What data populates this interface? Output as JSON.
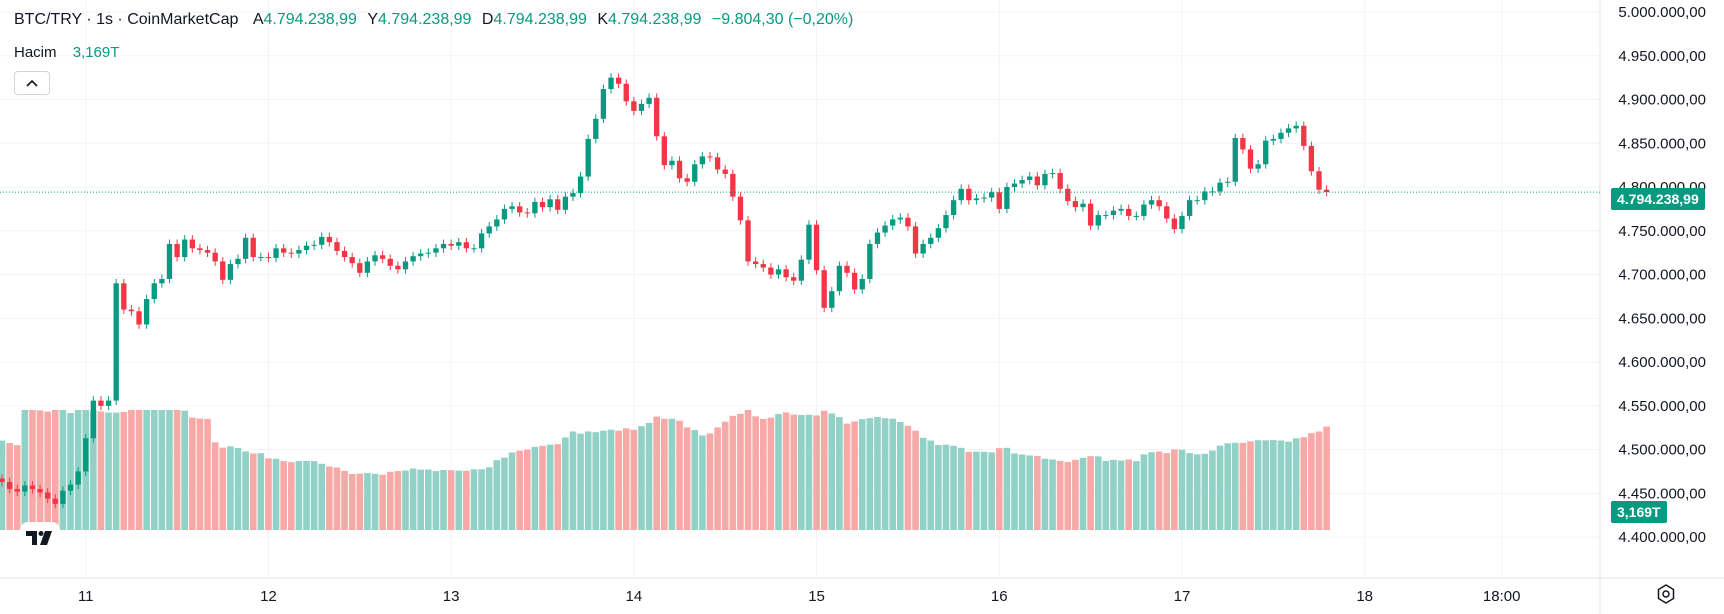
{
  "legend": {
    "symbol": "BTC/TRY · 1s · CoinMarketCap",
    "open_label": "A",
    "open": "4.794.238,99",
    "high_label": "Y",
    "high": "4.794.238,99",
    "low_label": "D",
    "low": "4.794.238,99",
    "close_label": "K",
    "close": "4.794.238,99",
    "change": "−9.804,30 (−0,20%)"
  },
  "volume_legend": {
    "label": "Hacim",
    "value": "3,169T"
  },
  "last_price_tag": "4.794.238,99",
  "volume_tag": "3,169T",
  "colors": {
    "up": "#089981",
    "down": "#f23645",
    "vol_up": "#92d2c6",
    "vol_down": "#f7a9a7",
    "grid": "#f0f3fa"
  },
  "chart_data": {
    "type": "candlestick",
    "y_axis": {
      "range": [
        4375000,
        5000000
      ],
      "ticks": [
        "5.000.000,00",
        "4.950.000,00",
        "4.900.000,00",
        "4.850.000,00",
        "4.800.000,00",
        "4.750.000,00",
        "4.700.000,00",
        "4.650.000,00",
        "4.600.000,00",
        "4.550.000,00",
        "4.500.000,00",
        "4.450.000,00",
        "4.400.000,00"
      ],
      "tick_values": [
        5000000,
        4950000,
        4900000,
        4850000,
        4800000,
        4750000,
        4700000,
        4650000,
        4600000,
        4550000,
        4500000,
        4450000,
        4400000
      ]
    },
    "x_axis": {
      "labels": [
        "11",
        "12",
        "13",
        "14",
        "15",
        "16",
        "17",
        "18",
        "18:00"
      ],
      "label_hours": [
        11,
        35,
        59,
        83,
        107,
        131,
        155,
        179,
        197
      ],
      "start_hour": 0,
      "end_hour": 204
    },
    "last_price": 4794238.99,
    "candle_closes": [
      4463000,
      4455000,
      4452000,
      4459000,
      4455000,
      4451000,
      4444000,
      4438000,
      4453000,
      4460000,
      4475000,
      4513000,
      4556000,
      4550000,
      4556000,
      4690000,
      4660000,
      4658000,
      4643000,
      4672000,
      4690000,
      4695000,
      4735000,
      4720000,
      4740000,
      4730000,
      4728000,
      4725000,
      4715000,
      4694000,
      4712000,
      4718000,
      4742000,
      4720000,
      4720000,
      4719000,
      4730000,
      4725000,
      4724000,
      4728000,
      4733000,
      4734000,
      4743000,
      4737000,
      4727000,
      4720000,
      4713000,
      4702000,
      4715000,
      4722000,
      4718000,
      4710000,
      4706000,
      4715000,
      4721000,
      4724000,
      4725000,
      4730000,
      4735000,
      4733000,
      4737000,
      4730000,
      4730000,
      4747000,
      4755000,
      4763000,
      4775000,
      4778000,
      4771000,
      4770000,
      4783000,
      4777000,
      4786000,
      4774000,
      4789000,
      4793000,
      4812000,
      4855000,
      4878000,
      4912000,
      4925000,
      4918000,
      4898000,
      4887000,
      4895000,
      4902000,
      4858000,
      4825000,
      4830000,
      4810000,
      4806000,
      4826000,
      4835000,
      4834000,
      4820000,
      4815000,
      4789000,
      4762000,
      4715000,
      4712000,
      4708000,
      4700000,
      4706000,
      4697000,
      4693000,
      4717000,
      4757000,
      4705000,
      4662000,
      4681000,
      4710000,
      4702000,
      4683000,
      4695000,
      4735000,
      4748000,
      4756000,
      4763000,
      4765000,
      4755000,
      4724000,
      4735000,
      4742000,
      4753000,
      4768000,
      4785000,
      4798000,
      4785000,
      4787000,
      4788000,
      4794000,
      4775000,
      4800000,
      4804000,
      4808000,
      4812000,
      4802000,
      4815000,
      4816000,
      4798000,
      4784000,
      4777000,
      4781000,
      4756000,
      4768000,
      4768000,
      4773000,
      4775000,
      4767000,
      4767000,
      4780000,
      4785000,
      4778000,
      4764000,
      4752000,
      4767000,
      4785000,
      4785000,
      4795000,
      4795000,
      4805000,
      4806000,
      4856000,
      4843000,
      4821000,
      4826000,
      4853000,
      4855000,
      4862000,
      4867000,
      4870000,
      4847000,
      4818000,
      4797000,
      4794238
    ],
    "candle_spacing_hours": 1,
    "first_candle_hour": 0
  }
}
